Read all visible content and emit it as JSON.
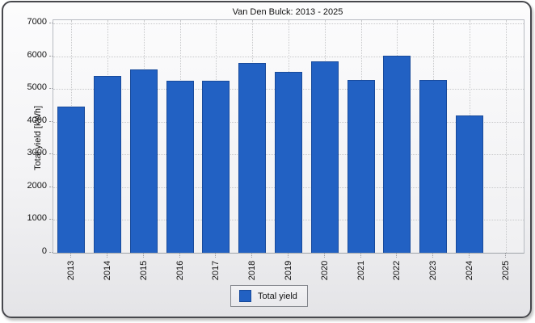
{
  "window": {
    "title": "Van Den Bulck: 2013 - 2025"
  },
  "chart_data": {
    "type": "bar",
    "title": "Van Den Bulck: 2013 - 2025",
    "categories": [
      "2013",
      "2014",
      "2015",
      "2016",
      "2017",
      "2018",
      "2019",
      "2020",
      "2021",
      "2022",
      "2023",
      "2024",
      "2025"
    ],
    "series": [
      {
        "name": "Total yield",
        "values": [
          4460,
          5400,
          5590,
          5260,
          5250,
          5780,
          5510,
          5840,
          5270,
          6010,
          5280,
          4190,
          null
        ]
      }
    ],
    "xlabel": "",
    "ylabel": "Total yield [kWh]",
    "ylim": [
      0,
      7000
    ],
    "yticks": [
      0,
      1000,
      2000,
      3000,
      4000,
      5000,
      6000,
      7000
    ],
    "grid": true,
    "legend_position": "bottom-center",
    "colors": {
      "bar_fill": "#2261c3",
      "bar_border": "#184a9b"
    }
  },
  "legend": {
    "label": "Total yield"
  }
}
